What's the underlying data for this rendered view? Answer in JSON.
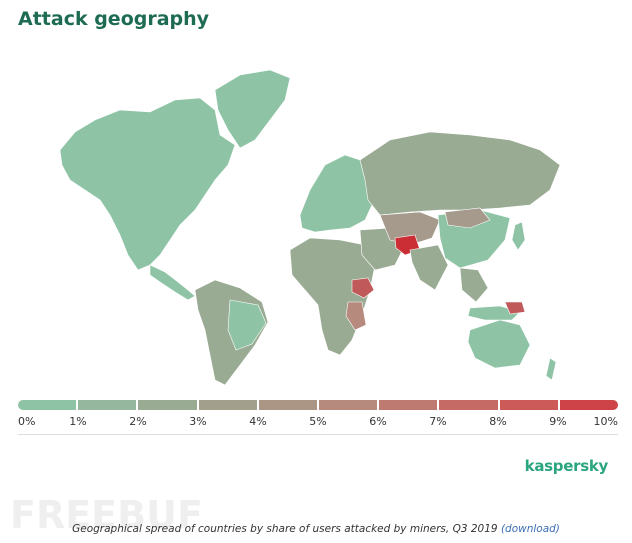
{
  "title": "Attack geography",
  "legend": {
    "labels": [
      "0%",
      "1%",
      "2%",
      "3%",
      "4%",
      "5%",
      "6%",
      "7%",
      "8%",
      "9%",
      "10%"
    ],
    "colors": [
      "#8ec4a5",
      "#95b79d",
      "#9aab94",
      "#a2a08d",
      "#ab9686",
      "#b68a7c",
      "#be7a70",
      "#c56a65",
      "#cb5a58",
      "#cd4347",
      "#cc2e36"
    ]
  },
  "map_colors": {
    "low": "#8ec4a5",
    "mid_low": "#9aab94",
    "mid": "#a59a8c",
    "high": "#c05a5a",
    "max": "#cc2e36"
  },
  "brand": "kaspersky",
  "watermark": "FREEBUF",
  "caption": {
    "text": "Geographical spread of countries by share of users attacked by miners, Q3 2019",
    "link": "(download)"
  }
}
